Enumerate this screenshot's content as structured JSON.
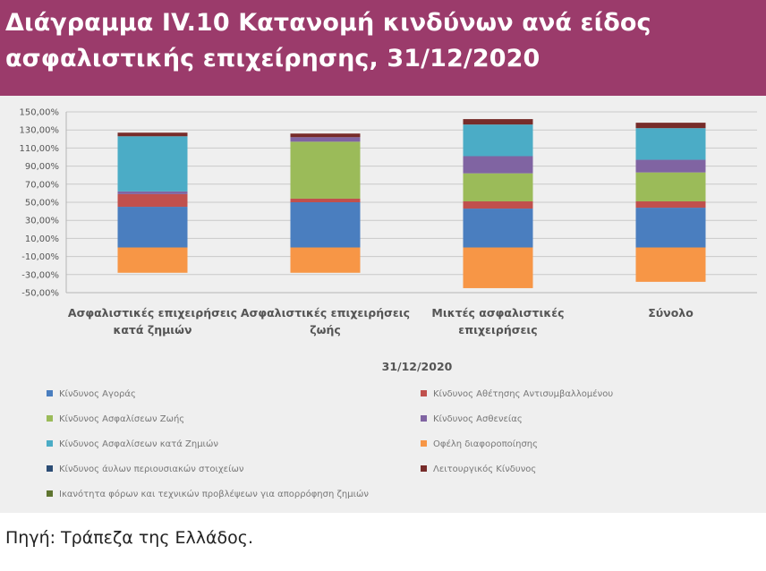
{
  "header": {
    "title_line1": "Διάγραμμα IV.10 Κατανομή κινδύνων ανά είδος",
    "title_line2": "ασφαλιστικής επιχείρησης, 31/12/2020"
  },
  "chart_data": {
    "type": "bar",
    "stacked": true,
    "categories": [
      [
        "Ασφαλιστικές επιχειρήσεις",
        "κατά ζημιών"
      ],
      [
        "Ασφαλιστικές επιχειρήσεις",
        "ζωής"
      ],
      [
        "Μικτές ασφαλιστικές",
        "επιχειρήσεις"
      ],
      [
        "Σύνολο"
      ]
    ],
    "xlabel": "31/12/2020",
    "ylabel": "",
    "ylim": [
      -50,
      150
    ],
    "y_ticks": [
      "150,00%",
      "130,00%",
      "110,00%",
      "90,00%",
      "70,00%",
      "50,00%",
      "30,00%",
      "10,00%",
      "-10,00%",
      "-30,00%",
      "-50,00%"
    ],
    "grid": true,
    "legend_position": "bottom",
    "series": [
      {
        "name": "Κίνδυνος Αγοράς",
        "color": "#4a7ebf",
        "values": [
          45,
          50,
          43,
          44
        ]
      },
      {
        "name": "Κίνδυνος Αθέτησης Αντισυμβαλλομένου",
        "color": "#c0504d",
        "values": [
          14,
          4,
          8,
          7
        ]
      },
      {
        "name": "Κίνδυνος Ασφαλίσεων Ζωής",
        "color": "#9bbb59",
        "values": [
          0,
          63,
          31,
          32
        ]
      },
      {
        "name": "Κίνδυνος Ασθενείας",
        "color": "#8064a2",
        "values": [
          3,
          5,
          19,
          14
        ]
      },
      {
        "name": "Κίνδυνος Ασφαλίσεων κατά Ζημιών",
        "color": "#4bacc6",
        "values": [
          61,
          0,
          35,
          35
        ]
      },
      {
        "name": "Οφέλη διαφοροποίησης",
        "color": "#f79646",
        "values": [
          -28,
          -28,
          -45,
          -38
        ]
      },
      {
        "name": "Κίνδυνος άυλων περιουσιακών στοιχείων",
        "color": "#2c4d75",
        "values": [
          0,
          0,
          0,
          0
        ]
      },
      {
        "name": "Λειτουργικός Κίνδυνος",
        "color": "#772c2a",
        "values": [
          4,
          4,
          6,
          6
        ]
      },
      {
        "name": "Ικανότητα φόρων και τεχνικών προβλέψεων για απορρόφηση ζημιών",
        "color": "#5f7530",
        "values": [
          0,
          0,
          0,
          0
        ]
      }
    ]
  },
  "source": {
    "text": "Πηγή: Τράπεζα της Ελλάδος."
  }
}
